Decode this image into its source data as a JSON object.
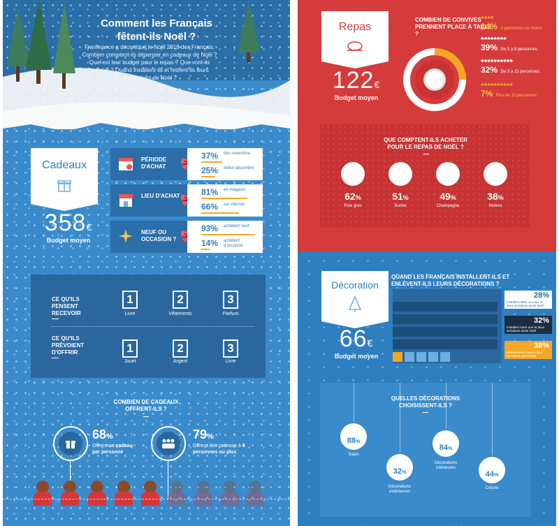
{
  "left": {
    "title_line1": "Comment les Français",
    "title_line2": "fêtent-ils Noël ?",
    "intro": "Franfinance a décortiqué le Noël 2018 des Français. Combien comptent-ils dépenser en cadeaux de Noël ? Quel est leur budget pour le repas ? Que vont-ils acheter ? Quand installent-ils et retirent-ils leurs décorations de Noël ?",
    "cadeaux": {
      "label": "Cadeaux",
      "budget": "358",
      "currency": "€",
      "budget_label": "Budget moyen"
    },
    "rows": [
      {
        "label": "PÉRIODE D'ACHAT",
        "v1": "37%",
        "t1": "dès novembre",
        "f1": 37,
        "v2": "25%",
        "t2": "début décembre",
        "f2": 25
      },
      {
        "label": "LIEU D'ACHAT",
        "v1": "81%",
        "t1": "en magasin",
        "f1": 81,
        "v2": "66%",
        "t2": "sur internet",
        "f2": 66
      },
      {
        "label": "NEUF OU OCCASION ?",
        "v1": "93%",
        "t1": "achètent neuf",
        "f1": 93,
        "v2": "14%",
        "t2": "achètent d'occasion",
        "f2": 14
      }
    ],
    "recevoir": {
      "caption": "CE QU'ILS PENSENT RECEVOIR",
      "items": [
        "Livre",
        "Vêtements",
        "Parfum"
      ]
    },
    "offrir": {
      "caption": "CE QU'ILS PRÉVOIENT D'OFFRIR",
      "items": [
        "Jouet",
        "Argent",
        "Livre"
      ]
    },
    "ranks": [
      "1",
      "2",
      "3"
    ],
    "combien": {
      "title": "COMBIEN DE CADEAUX OFFRENT-ILS ?",
      "a_pct": "68",
      "a_l1": "Offrent",
      "a_l2": "un cadeau par personne",
      "b_pct": "79",
      "b_l1": "Offrent des cadeaux à",
      "b_l2": "5 personnes ou plus",
      "pct_sign": "%"
    }
  },
  "repas": {
    "label": "Repas",
    "budget": "122",
    "currency": "€",
    "budget_label": "Budget moyen",
    "convives_title": "COMBIEN DE CONVIVES PRENNENT PLACE À TABLE ?",
    "convives": [
      {
        "pct": "14%",
        "text": "4 personnes ou moins"
      },
      {
        "pct": "39%",
        "text": "De 5 à 8 personnes"
      },
      {
        "pct": "32%",
        "text": "De 9 à 15 personnes"
      },
      {
        "pct": "7%",
        "text": "Plus de 15 personnes"
      }
    ],
    "achat_title": "QUE COMPTENT-ILS ACHETER POUR LE REPAS DE NOËL ?",
    "foods": [
      {
        "pct": "62",
        "label": "Foie gras"
      },
      {
        "pct": "51",
        "label": "Buche"
      },
      {
        "pct": "49",
        "label": "Champagne"
      },
      {
        "pct": "38",
        "label": "Huitres"
      }
    ],
    "pct_sign": "%"
  },
  "deco": {
    "label": "Décoration",
    "budget": "66",
    "currency": "€",
    "budget_label": "Budget moyen",
    "quand_title": "QUAND LES FRANÇAIS INSTALLENT-ILS ET ENLÈVENT-ILS LEURS DÉCORATIONS ?",
    "quand": [
      {
        "pct": "28%",
        "text": "Installent entre un mois et deux semaines avant Noël"
      },
      {
        "pct": "32%",
        "text": "Installent entre une et deux semaines avant Noël"
      },
      {
        "pct": "38%",
        "text": "Retirent entre une et deux semaines après Noël"
      }
    ],
    "quelles_title": "QUELLES DÉCORATIONS CHOISISSENT-ILS ?",
    "items": [
      {
        "pct": "88",
        "label": "Sapin"
      },
      {
        "pct": "32",
        "label": "Décorations extérieures"
      },
      {
        "pct": "84",
        "label": "Décorations intérieures"
      },
      {
        "pct": "44",
        "label": "Crèche"
      }
    ],
    "pct_sign": "%"
  },
  "colors": {
    "blue": "#3a8bcc",
    "dark_blue": "#2a679f",
    "red": "#d63b3b",
    "orange": "#f5a623"
  },
  "icons": [
    "gift-icon",
    "calendar-icon",
    "shop-icon",
    "sparkle-icon",
    "bow-icon",
    "turkey-icon",
    "plate-icon",
    "foie-gras-icon",
    "buche-icon",
    "champagne-icon",
    "oyster-icon",
    "tree-icon",
    "bauble-icon"
  ]
}
